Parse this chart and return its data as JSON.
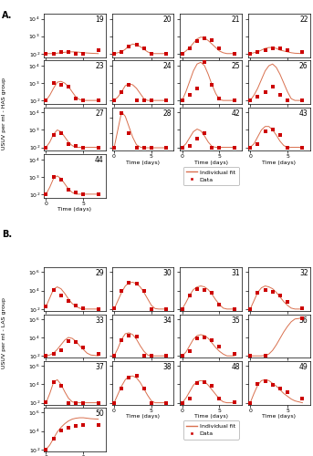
{
  "panel_A_label": "A.",
  "panel_B_label": "B.",
  "line_color": "#d9704e",
  "dot_color": "#cc0000",
  "HAS_chickens": [
    {
      "id": "19",
      "data_x": [
        0,
        1,
        2,
        3,
        4,
        5,
        7
      ],
      "data_y": [
        2.0,
        2.0,
        2.1,
        2.1,
        2.0,
        2.0,
        2.2
      ],
      "fit_x": [
        0,
        1,
        2,
        3,
        4,
        5,
        6,
        7
      ],
      "fit_y": [
        2.0,
        2.0,
        2.05,
        2.1,
        2.1,
        2.05,
        2.02,
        2.0
      ],
      "ylim": [
        1.8,
        4.3
      ],
      "yticks": [
        2,
        3,
        4
      ]
    },
    {
      "id": "20",
      "data_x": [
        0,
        1,
        2,
        3,
        4,
        5,
        7
      ],
      "data_y": [
        2.0,
        2.1,
        2.4,
        2.5,
        2.3,
        2.0,
        2.0
      ],
      "fit_x": [
        0,
        0.5,
        1,
        1.5,
        2,
        2.5,
        3,
        3.5,
        4,
        4.5,
        5,
        5.5,
        6,
        7
      ],
      "fit_y": [
        2.0,
        2.05,
        2.1,
        2.25,
        2.45,
        2.55,
        2.5,
        2.4,
        2.25,
        2.1,
        2.0,
        2.0,
        2.0,
        2.0
      ],
      "ylim": [
        1.8,
        4.3
      ],
      "yticks": [
        2,
        3,
        4
      ]
    },
    {
      "id": "21",
      "data_x": [
        0,
        1,
        2,
        3,
        4,
        5,
        7
      ],
      "data_y": [
        2.0,
        2.3,
        2.7,
        2.9,
        2.8,
        2.3,
        2.0
      ],
      "fit_x": [
        0,
        0.5,
        1,
        1.5,
        2,
        2.5,
        3,
        3.5,
        4,
        4.5,
        5,
        5.5,
        6,
        7
      ],
      "fit_y": [
        2.0,
        2.15,
        2.35,
        2.6,
        2.85,
        2.95,
        2.9,
        2.75,
        2.55,
        2.35,
        2.15,
        2.05,
        2.0,
        2.0
      ],
      "ylim": [
        1.8,
        4.3
      ],
      "yticks": [
        2,
        3,
        4
      ]
    },
    {
      "id": "22",
      "data_x": [
        0,
        1,
        2,
        3,
        4,
        5,
        7
      ],
      "data_y": [
        2.0,
        2.1,
        2.2,
        2.3,
        2.3,
        2.2,
        2.1
      ],
      "fit_x": [
        0,
        0.5,
        1,
        1.5,
        2,
        2.5,
        3,
        3.5,
        4,
        4.5,
        5,
        5.5,
        6,
        7
      ],
      "fit_y": [
        2.0,
        2.05,
        2.1,
        2.2,
        2.3,
        2.35,
        2.35,
        2.3,
        2.2,
        2.15,
        2.1,
        2.05,
        2.02,
        2.0
      ],
      "ylim": [
        1.8,
        4.3
      ],
      "yticks": [
        2,
        3,
        4
      ]
    },
    {
      "id": "23",
      "data_x": [
        0,
        1,
        2,
        3,
        4,
        5,
        7
      ],
      "data_y": [
        2.0,
        3.0,
        2.9,
        2.8,
        2.1,
        2.0,
        2.0
      ],
      "fit_x": [
        0,
        0.5,
        1,
        1.5,
        2,
        2.5,
        3,
        3.5,
        4,
        4.5,
        5,
        5.5,
        6,
        7
      ],
      "fit_y": [
        2.0,
        2.3,
        2.7,
        3.05,
        3.1,
        3.0,
        2.8,
        2.5,
        2.2,
        2.05,
        2.0,
        2.0,
        2.0,
        2.0
      ],
      "ylim": [
        1.8,
        4.3
      ],
      "yticks": [
        2,
        3,
        4
      ]
    },
    {
      "id": "24",
      "data_x": [
        0,
        1,
        2,
        3,
        4,
        5,
        7
      ],
      "data_y": [
        2.0,
        2.5,
        2.9,
        2.0,
        2.0,
        2.0,
        2.0
      ],
      "fit_x": [
        0,
        0.5,
        1,
        1.5,
        2,
        2.5,
        3,
        3.5,
        4,
        4.5,
        5,
        5.5,
        6,
        7
      ],
      "fit_y": [
        2.0,
        2.2,
        2.5,
        2.85,
        2.95,
        2.9,
        2.7,
        2.4,
        2.1,
        2.0,
        2.0,
        2.0,
        2.0,
        2.0
      ],
      "ylim": [
        1.8,
        4.3
      ],
      "yticks": [
        2,
        3,
        4
      ]
    },
    {
      "id": "25",
      "data_x": [
        0,
        1,
        2,
        3,
        4,
        5,
        7
      ],
      "data_y": [
        2.0,
        2.3,
        2.7,
        4.2,
        2.9,
        2.1,
        2.0
      ],
      "fit_x": [
        0,
        0.5,
        1,
        1.5,
        2,
        2.5,
        3,
        3.5,
        4,
        4.5,
        5,
        5.5,
        6,
        7
      ],
      "fit_y": [
        2.0,
        2.5,
        3.1,
        3.7,
        4.1,
        4.2,
        4.0,
        3.5,
        2.9,
        2.4,
        2.05,
        2.0,
        2.0,
        2.0
      ],
      "ylim": [
        1.8,
        4.3
      ],
      "yticks": [
        2,
        3,
        4
      ]
    },
    {
      "id": "26",
      "data_x": [
        0,
        1,
        2,
        3,
        4,
        5,
        7
      ],
      "data_y": [
        2.0,
        2.2,
        2.5,
        2.8,
        2.3,
        2.0,
        2.0
      ],
      "fit_x": [
        0,
        0.5,
        1,
        1.5,
        2,
        2.5,
        3,
        3.5,
        4,
        4.5,
        5,
        5.5,
        6,
        7
      ],
      "fit_y": [
        2.0,
        2.3,
        2.7,
        3.2,
        3.7,
        4.0,
        4.1,
        3.9,
        3.5,
        3.0,
        2.5,
        2.1,
        2.0,
        2.0
      ],
      "ylim": [
        1.8,
        4.3
      ],
      "yticks": [
        2,
        3,
        4
      ]
    },
    {
      "id": "27",
      "data_x": [
        0,
        1,
        2,
        3,
        4,
        5,
        7
      ],
      "data_y": [
        2.0,
        2.7,
        2.8,
        2.2,
        2.1,
        2.0,
        2.0
      ],
      "fit_x": [
        0,
        0.5,
        1,
        1.5,
        2,
        2.5,
        3,
        3.5,
        4,
        4.5,
        5,
        5.5,
        6,
        7
      ],
      "fit_y": [
        2.0,
        2.3,
        2.75,
        3.0,
        2.9,
        2.6,
        2.3,
        2.1,
        2.0,
        2.0,
        2.0,
        2.0,
        2.0,
        2.0
      ],
      "ylim": [
        1.8,
        4.3
      ],
      "yticks": [
        2,
        3,
        4
      ]
    },
    {
      "id": "28",
      "data_x": [
        0,
        1,
        2,
        3,
        4,
        5,
        7
      ],
      "data_y": [
        2.0,
        4.3,
        3.0,
        2.0,
        2.0,
        2.0,
        2.0
      ],
      "fit_x": [
        0,
        0.5,
        1,
        1.5,
        2,
        2.5,
        3,
        3.5,
        4,
        4.5,
        5,
        5.5,
        6,
        7
      ],
      "fit_y": [
        2.0,
        3.2,
        4.4,
        4.1,
        3.4,
        2.7,
        2.2,
        2.05,
        2.0,
        2.0,
        2.0,
        2.0,
        2.0,
        2.0
      ],
      "ylim": [
        1.8,
        4.7
      ],
      "yticks": [
        2,
        3,
        4
      ]
    },
    {
      "id": "42",
      "data_x": [
        0,
        1,
        2,
        3,
        4,
        5,
        7
      ],
      "data_y": [
        2.0,
        2.1,
        2.5,
        2.8,
        2.0,
        2.0,
        2.0
      ],
      "fit_x": [
        0,
        0.5,
        1,
        1.5,
        2,
        2.5,
        3,
        3.5,
        4,
        4.5,
        5,
        5.5,
        6,
        7
      ],
      "fit_y": [
        2.0,
        2.2,
        2.55,
        2.9,
        3.05,
        2.95,
        2.65,
        2.3,
        2.05,
        2.0,
        2.0,
        2.0,
        2.0,
        2.0
      ],
      "ylim": [
        1.8,
        4.3
      ],
      "yticks": [
        2,
        3,
        4
      ]
    },
    {
      "id": "43",
      "data_x": [
        0,
        1,
        2,
        3,
        4,
        5,
        7
      ],
      "data_y": [
        2.0,
        2.2,
        2.9,
        3.0,
        2.7,
        2.0,
        2.0
      ],
      "fit_x": [
        0,
        0.5,
        1,
        1.5,
        2,
        2.5,
        3,
        3.5,
        4,
        4.5,
        5,
        5.5,
        6,
        7
      ],
      "fit_y": [
        2.0,
        2.2,
        2.6,
        3.0,
        3.2,
        3.2,
        3.0,
        2.7,
        2.35,
        2.1,
        2.0,
        2.0,
        2.0,
        2.0
      ],
      "ylim": [
        1.8,
        4.3
      ],
      "yticks": [
        2,
        3,
        4
      ]
    },
    {
      "id": "44",
      "data_x": [
        0,
        1,
        2,
        3,
        4,
        5,
        7
      ],
      "data_y": [
        2.0,
        3.0,
        2.85,
        2.25,
        2.1,
        2.0,
        2.0
      ],
      "fit_x": [
        0,
        0.5,
        1,
        1.5,
        2,
        2.5,
        3,
        3.5,
        4,
        4.5,
        5,
        5.5,
        6,
        7
      ],
      "fit_y": [
        2.0,
        2.4,
        2.9,
        3.05,
        2.9,
        2.6,
        2.3,
        2.1,
        2.0,
        2.0,
        2.0,
        2.0,
        2.0,
        2.0
      ],
      "ylim": [
        1.8,
        4.3
      ],
      "yticks": [
        2,
        3,
        4
      ]
    }
  ],
  "LAS_chickens": [
    {
      "id": "29",
      "data_x": [
        0,
        1,
        2,
        3,
        4,
        5,
        7
      ],
      "data_y": [
        2.3,
        4.1,
        3.5,
        2.9,
        2.4,
        2.1,
        2.0
      ],
      "fit_x": [
        0,
        0.5,
        1,
        1.5,
        2,
        2.5,
        3,
        3.5,
        4,
        4.5,
        5,
        5.5,
        6,
        7
      ],
      "fit_y": [
        2.3,
        3.2,
        4.15,
        4.4,
        4.2,
        3.7,
        3.1,
        2.6,
        2.3,
        2.1,
        2.0,
        2.0,
        2.0,
        2.0
      ],
      "ylim": [
        1.8,
        6.5
      ],
      "yticks": [
        2,
        4,
        6
      ]
    },
    {
      "id": "30",
      "data_x": [
        0,
        1,
        2,
        3,
        4,
        5,
        7
      ],
      "data_y": [
        2.1,
        4.0,
        4.85,
        4.8,
        4.0,
        2.0,
        2.0
      ],
      "fit_x": [
        0,
        0.5,
        1,
        1.5,
        2,
        2.5,
        3,
        3.5,
        4,
        4.5,
        5,
        5.5,
        6,
        7
      ],
      "fit_y": [
        2.0,
        2.9,
        3.8,
        4.5,
        4.85,
        4.9,
        4.75,
        4.4,
        3.8,
        3.1,
        2.4,
        2.05,
        2.0,
        2.0
      ],
      "ylim": [
        1.8,
        6.5
      ],
      "yticks": [
        2,
        4,
        6
      ]
    },
    {
      "id": "31",
      "data_x": [
        0,
        1,
        2,
        3,
        4,
        5,
        7
      ],
      "data_y": [
        2.0,
        3.5,
        4.2,
        4.1,
        3.8,
        2.5,
        2.0
      ],
      "fit_x": [
        0,
        0.5,
        1,
        1.5,
        2,
        2.5,
        3,
        3.5,
        4,
        4.5,
        5,
        5.5,
        6,
        7
      ],
      "fit_y": [
        2.0,
        2.7,
        3.5,
        4.1,
        4.4,
        4.5,
        4.4,
        4.1,
        3.6,
        3.0,
        2.5,
        2.1,
        2.0,
        2.0
      ],
      "ylim": [
        1.8,
        6.5
      ],
      "yticks": [
        2,
        4,
        6
      ]
    },
    {
      "id": "32",
      "data_x": [
        0,
        1,
        2,
        3,
        4,
        5,
        7
      ],
      "data_y": [
        2.0,
        3.8,
        4.1,
        3.9,
        3.5,
        2.8,
        2.1
      ],
      "fit_x": [
        0,
        0.5,
        1,
        1.5,
        2,
        2.5,
        3,
        3.5,
        4,
        4.5,
        5,
        5.5,
        6,
        7
      ],
      "fit_y": [
        2.0,
        2.9,
        3.8,
        4.3,
        4.5,
        4.4,
        4.2,
        3.8,
        3.3,
        2.8,
        2.4,
        2.1,
        2.0,
        2.0
      ],
      "ylim": [
        1.8,
        6.5
      ],
      "yticks": [
        2,
        4,
        6
      ]
    },
    {
      "id": "33",
      "data_x": [
        0,
        1,
        2,
        3,
        4,
        5,
        7
      ],
      "data_y": [
        2.0,
        2.2,
        2.6,
        3.6,
        3.5,
        2.9,
        2.2
      ],
      "fit_x": [
        0,
        0.5,
        1,
        1.5,
        2,
        2.5,
        3,
        3.5,
        4,
        4.5,
        5,
        5.5,
        6,
        7
      ],
      "fit_y": [
        2.0,
        2.1,
        2.3,
        2.7,
        3.2,
        3.7,
        4.0,
        3.9,
        3.6,
        3.1,
        2.7,
        2.3,
        2.1,
        2.0
      ],
      "ylim": [
        1.8,
        6.5
      ],
      "yticks": [
        2,
        4,
        6
      ]
    },
    {
      "id": "34",
      "data_x": [
        0,
        1,
        2,
        3,
        4,
        5,
        7
      ],
      "data_y": [
        2.0,
        3.7,
        4.2,
        4.1,
        2.0,
        2.0,
        2.0
      ],
      "fit_x": [
        0,
        0.5,
        1,
        1.5,
        2,
        2.5,
        3,
        3.5,
        4,
        4.5,
        5,
        5.5,
        6,
        7
      ],
      "fit_y": [
        2.0,
        2.8,
        3.8,
        4.4,
        4.5,
        4.3,
        3.8,
        3.1,
        2.5,
        2.1,
        2.0,
        2.0,
        2.0,
        2.0
      ],
      "ylim": [
        1.8,
        6.5
      ],
      "yticks": [
        2,
        4,
        6
      ]
    },
    {
      "id": "35",
      "data_x": [
        0,
        1,
        2,
        3,
        4,
        5,
        7
      ],
      "data_y": [
        2.0,
        2.5,
        3.9,
        4.0,
        3.7,
        3.0,
        2.2
      ],
      "fit_x": [
        0,
        0.5,
        1,
        1.5,
        2,
        2.5,
        3,
        3.5,
        4,
        4.5,
        5,
        5.5,
        6,
        7
      ],
      "fit_y": [
        2.0,
        2.4,
        3.1,
        3.8,
        4.2,
        4.3,
        4.2,
        3.9,
        3.4,
        2.9,
        2.5,
        2.2,
        2.0,
        2.0
      ],
      "ylim": [
        1.8,
        6.5
      ],
      "yticks": [
        2,
        4,
        6
      ]
    },
    {
      "id": "36",
      "data_x": [
        0,
        2,
        7
      ],
      "data_y": [
        2.0,
        2.0,
        6.1
      ],
      "fit_x": [
        0,
        0.5,
        1,
        1.5,
        2,
        2.5,
        3,
        3.5,
        4,
        4.5,
        5,
        5.5,
        6,
        7
      ],
      "fit_y": [
        2.0,
        2.0,
        2.0,
        2.0,
        2.05,
        2.2,
        2.6,
        3.2,
        3.9,
        4.6,
        5.2,
        5.7,
        6.0,
        6.1
      ],
      "ylim": [
        1.8,
        6.5
      ],
      "yticks": [
        2,
        4,
        6
      ]
    },
    {
      "id": "37",
      "data_x": [
        0,
        1,
        2,
        3,
        4,
        5,
        7
      ],
      "data_y": [
        2.1,
        4.2,
        3.8,
        2.0,
        2.0,
        2.0,
        2.0
      ],
      "fit_x": [
        0,
        0.5,
        1,
        1.5,
        2,
        2.5,
        3,
        3.5,
        4,
        4.5,
        5,
        5.5,
        6,
        7
      ],
      "fit_y": [
        2.0,
        3.0,
        4.2,
        4.5,
        4.0,
        3.2,
        2.5,
        2.1,
        2.0,
        2.0,
        2.0,
        2.0,
        2.0,
        2.0
      ],
      "ylim": [
        1.8,
        6.5
      ],
      "yticks": [
        2,
        4,
        6
      ]
    },
    {
      "id": "38",
      "data_x": [
        0,
        1,
        2,
        3,
        4,
        5,
        7
      ],
      "data_y": [
        2.0,
        3.5,
        4.7,
        4.9,
        3.5,
        2.0,
        2.0
      ],
      "fit_x": [
        0,
        0.5,
        1,
        1.5,
        2,
        2.5,
        3,
        3.5,
        4,
        4.5,
        5,
        5.5,
        6,
        7
      ],
      "fit_y": [
        2.0,
        2.9,
        3.8,
        4.5,
        4.85,
        4.9,
        4.7,
        4.2,
        3.5,
        2.8,
        2.2,
        2.0,
        2.0,
        2.0
      ],
      "ylim": [
        1.8,
        6.5
      ],
      "yticks": [
        2,
        4,
        6
      ]
    },
    {
      "id": "48",
      "data_x": [
        0,
        1,
        2,
        3,
        4,
        5,
        7
      ],
      "data_y": [
        2.0,
        2.5,
        4.1,
        4.2,
        3.8,
        2.5,
        2.1
      ],
      "fit_x": [
        0,
        0.5,
        1,
        1.5,
        2,
        2.5,
        3,
        3.5,
        4,
        4.5,
        5,
        5.5,
        6,
        7
      ],
      "fit_y": [
        2.0,
        2.5,
        3.2,
        3.9,
        4.3,
        4.4,
        4.3,
        3.9,
        3.4,
        2.9,
        2.4,
        2.1,
        2.0,
        2.0
      ],
      "ylim": [
        1.8,
        6.5
      ],
      "yticks": [
        2,
        4,
        6
      ]
    },
    {
      "id": "49",
      "data_x": [
        0,
        1,
        2,
        3,
        4,
        5,
        7
      ],
      "data_y": [
        2.0,
        4.0,
        4.3,
        3.9,
        3.5,
        3.1,
        2.5
      ],
      "fit_x": [
        0,
        0.5,
        1,
        1.5,
        2,
        2.5,
        3,
        3.5,
        4,
        4.5,
        5,
        5.5,
        6,
        7
      ],
      "fit_y": [
        2.0,
        3.0,
        3.9,
        4.4,
        4.5,
        4.4,
        4.1,
        3.8,
        3.4,
        3.0,
        2.7,
        2.4,
        2.2,
        2.0
      ],
      "ylim": [
        1.8,
        6.5
      ],
      "yticks": [
        2,
        4,
        6
      ]
    },
    {
      "id": "50",
      "data_x": [
        0,
        1,
        2,
        3,
        4,
        5,
        7
      ],
      "data_y": [
        2.0,
        3.2,
        4.1,
        4.4,
        4.6,
        4.7,
        4.7
      ],
      "fit_x": [
        0,
        0.5,
        1,
        1.5,
        2,
        2.5,
        3,
        3.5,
        4,
        4.5,
        5,
        5.5,
        6,
        7
      ],
      "fit_y": [
        2.0,
        2.5,
        3.2,
        3.9,
        4.4,
        4.8,
        5.1,
        5.3,
        5.4,
        5.45,
        5.45,
        5.4,
        5.35,
        5.3
      ],
      "ylim": [
        1.8,
        6.5
      ],
      "yticks": [
        2,
        4,
        6
      ]
    }
  ],
  "ylabel_A": "USUV per ml - HAS group",
  "ylabel_B": "USUV per ml - LAS group",
  "xlabel": "Time (days)",
  "xticks": [
    0,
    5
  ],
  "xlim": [
    -0.3,
    8.0
  ],
  "bg_color": "#ffffff",
  "legend_line_label": "Individual fit",
  "legend_dot_label": "Data"
}
